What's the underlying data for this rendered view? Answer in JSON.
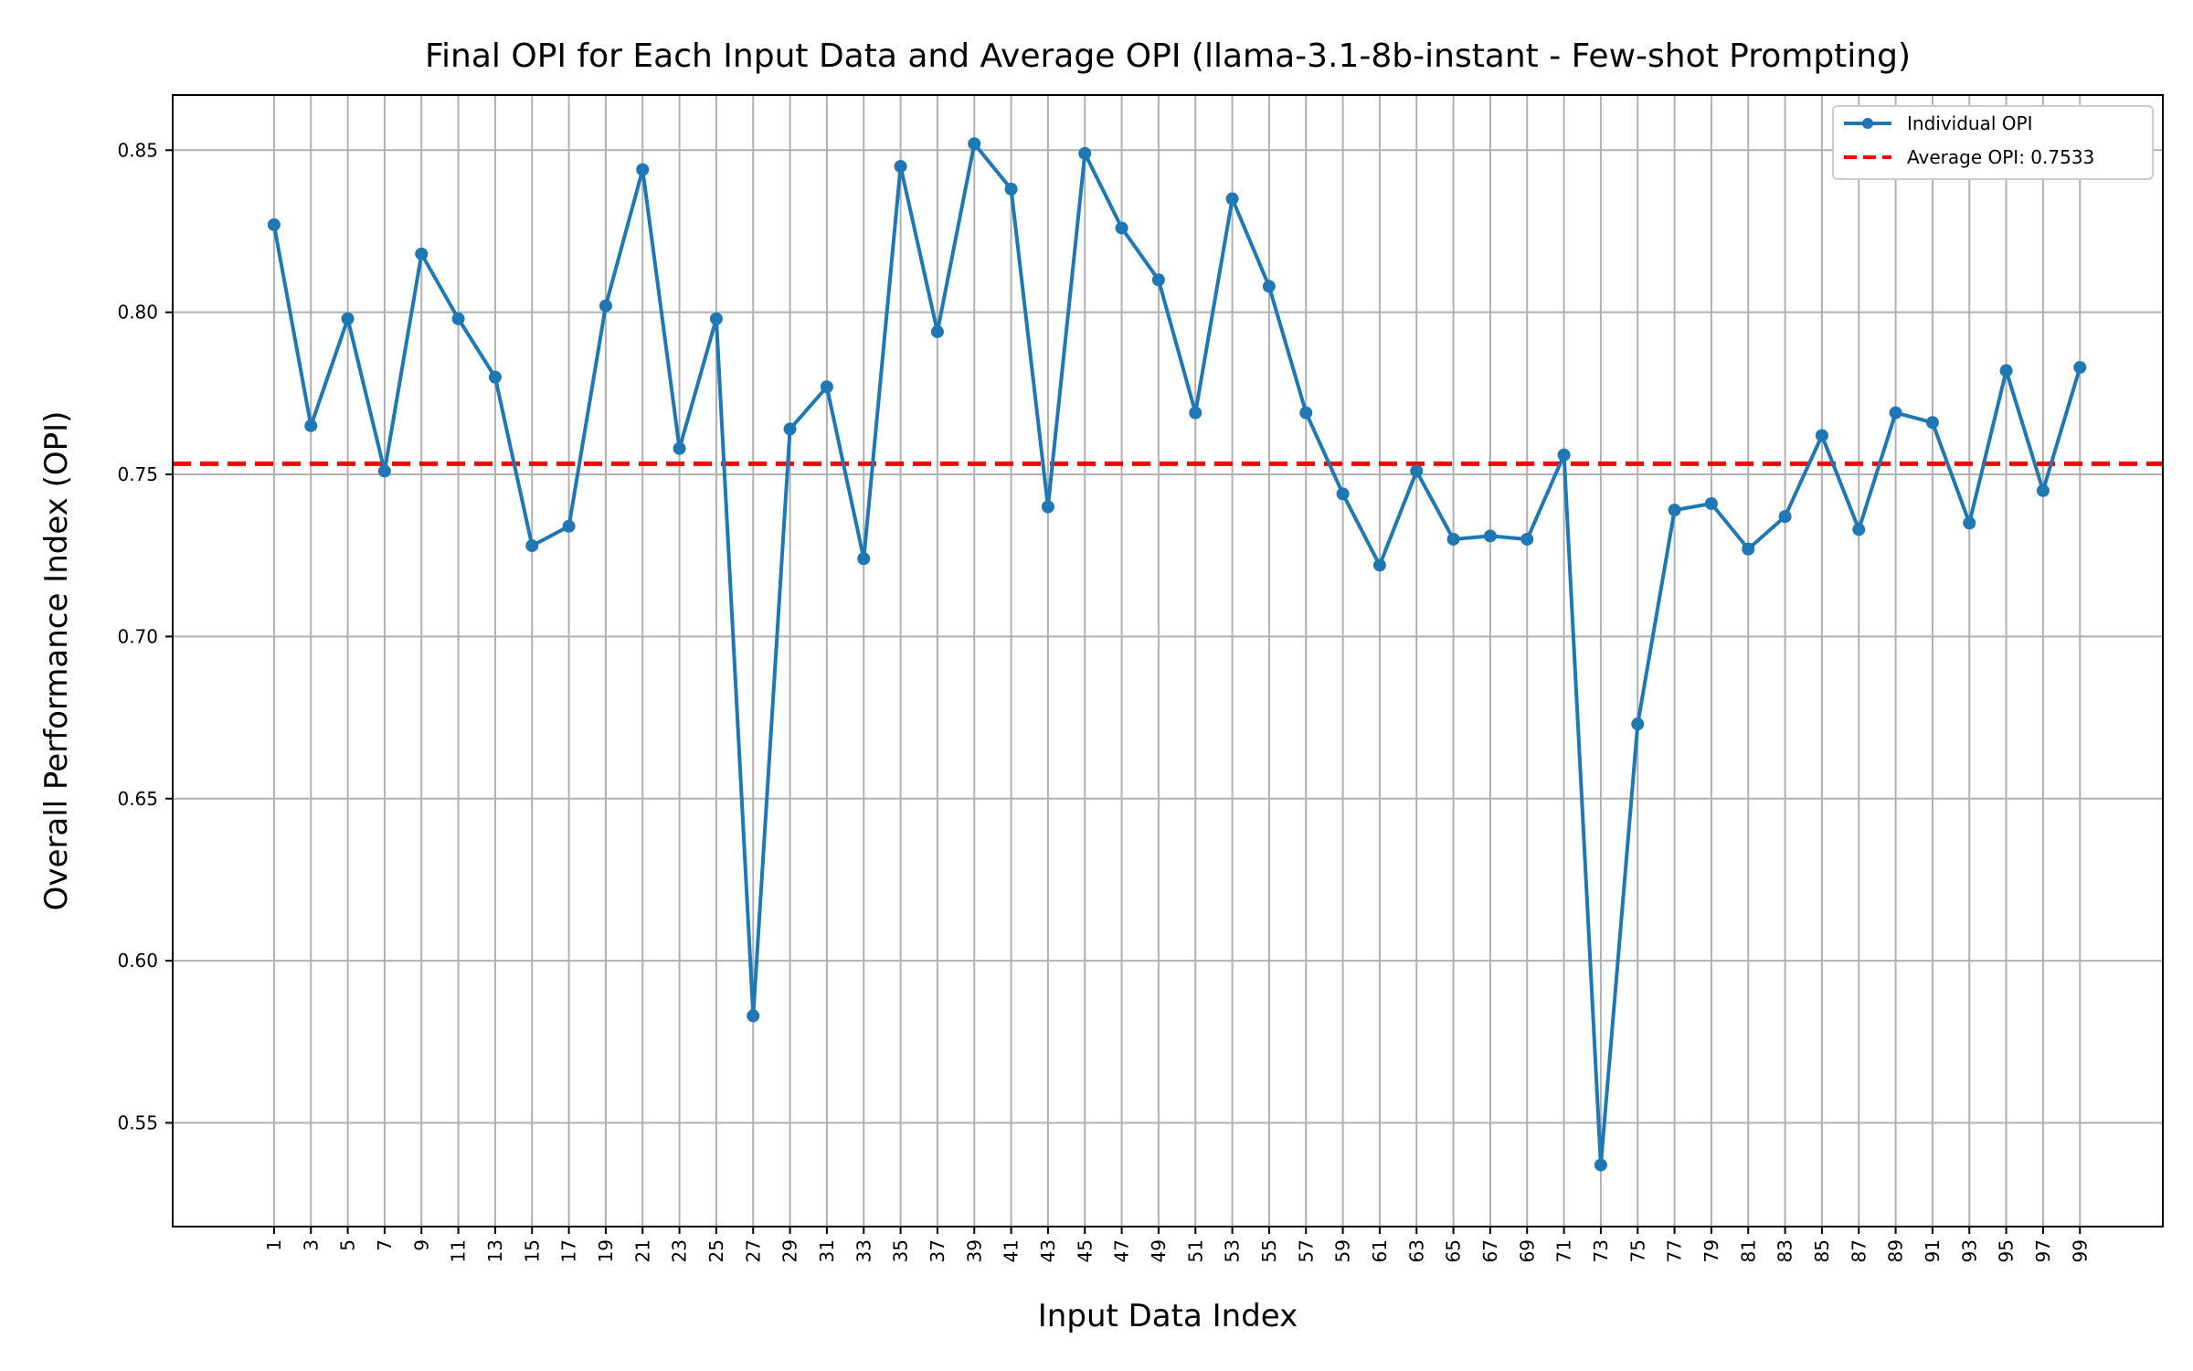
{
  "chart_data": {
    "type": "line",
    "title": "Final OPI for Each Input Data and Average OPI (llama-3.1-8b-instant - Few-shot Prompting)",
    "xlabel": "Input Data Index",
    "ylabel": "Overall Performance Index (OPI)",
    "xlim": [
      -4.5,
      103.5
    ],
    "ylim": [
      0.518,
      0.867
    ],
    "grid": true,
    "legend_position": "top-right",
    "x": [
      1,
      3,
      5,
      7,
      9,
      11,
      13,
      15,
      17,
      19,
      21,
      23,
      25,
      27,
      29,
      31,
      33,
      35,
      37,
      39,
      41,
      43,
      45,
      47,
      49,
      51,
      53,
      55,
      57,
      59,
      61,
      63,
      65,
      67,
      69,
      71,
      73,
      75,
      77,
      79,
      81,
      83,
      85,
      87,
      89,
      91,
      93,
      95,
      97,
      99
    ],
    "x_tick_labels": [
      "1",
      "3",
      "5",
      "7",
      "9",
      "11",
      "13",
      "15",
      "17",
      "19",
      "21",
      "23",
      "25",
      "27",
      "29",
      "31",
      "33",
      "35",
      "37",
      "39",
      "41",
      "43",
      "45",
      "47",
      "49",
      "51",
      "53",
      "55",
      "57",
      "59",
      "61",
      "63",
      "65",
      "67",
      "69",
      "71",
      "73",
      "75",
      "77",
      "79",
      "81",
      "83",
      "85",
      "87",
      "89",
      "91",
      "93",
      "95",
      "97",
      "99"
    ],
    "y_ticks": [
      0.55,
      0.6,
      0.65,
      0.7,
      0.75,
      0.8,
      0.85
    ],
    "y_tick_labels": [
      "0.55",
      "0.60",
      "0.65",
      "0.70",
      "0.75",
      "0.80",
      "0.85"
    ],
    "series": [
      {
        "name": "Individual OPI",
        "color": "#1f77b4",
        "values": [
          0.827,
          0.765,
          0.798,
          0.751,
          0.818,
          0.798,
          0.78,
          0.728,
          0.734,
          0.802,
          0.844,
          0.758,
          0.798,
          0.583,
          0.764,
          0.777,
          0.724,
          0.845,
          0.794,
          0.852,
          0.838,
          0.74,
          0.849,
          0.826,
          0.81,
          0.769,
          0.835,
          0.808,
          0.769,
          0.744,
          0.722,
          0.751,
          0.73,
          0.731,
          0.73,
          0.756,
          0.537,
          0.673,
          0.739,
          0.741,
          0.727,
          0.737,
          0.762,
          0.733,
          0.769,
          0.766,
          0.735,
          0.782,
          0.745,
          0.783
        ]
      }
    ],
    "average": {
      "name": "Average OPI: 0.7533",
      "value": 0.7533,
      "color": "#ff0000",
      "style": "dashed"
    }
  }
}
